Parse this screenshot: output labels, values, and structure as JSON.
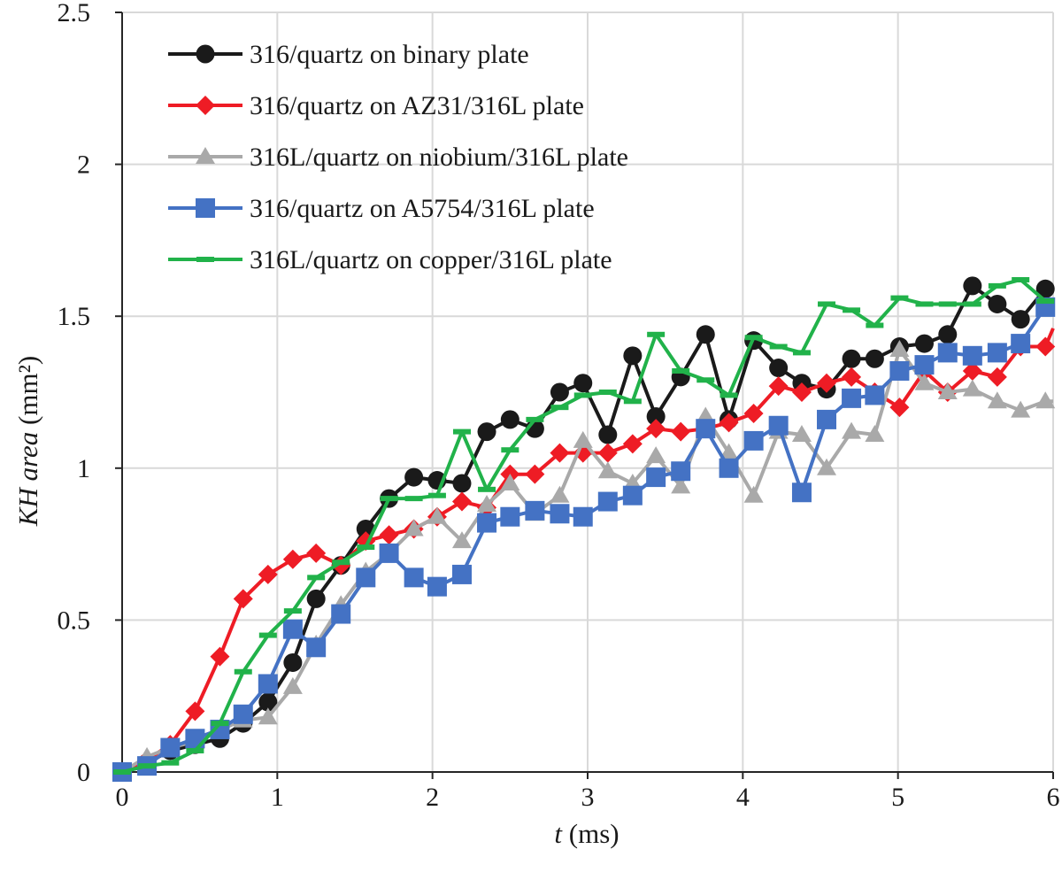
{
  "chart_data": {
    "type": "line",
    "title": "",
    "xlabel": {
      "var": "t",
      "unit": " (ms)"
    },
    "ylabel": {
      "var": "KH area",
      "unit": " (mm²)"
    },
    "xlim": [
      0,
      6
    ],
    "ylim": [
      0,
      2.5
    ],
    "x_ticks": [
      "0",
      "1",
      "2",
      "3",
      "4",
      "5",
      "6"
    ],
    "y_ticks": [
      "0",
      "0.5",
      "1",
      "1.5",
      "2",
      "2.5"
    ],
    "grid": true,
    "legend_position": "top-left",
    "series": [
      {
        "name": "316/quartz on binary plate",
        "color": "#1a1a1a",
        "marker": "circle",
        "x": [
          0,
          0.16,
          0.31,
          0.47,
          0.63,
          0.78,
          0.94,
          1.1,
          1.25,
          1.41,
          1.57,
          1.72,
          1.88,
          2.03,
          2.19,
          2.35,
          2.5,
          2.66,
          2.82,
          2.97,
          3.13,
          3.29,
          3.44,
          3.6,
          3.76,
          3.91,
          4.07,
          4.23,
          4.38,
          4.54,
          4.7,
          4.85,
          5.01,
          5.17,
          5.32,
          5.48,
          5.64,
          5.79,
          5.95,
          6.0
        ],
        "y": [
          0,
          0.03,
          0.07,
          0.09,
          0.11,
          0.16,
          0.23,
          0.36,
          0.57,
          0.68,
          0.8,
          0.9,
          0.97,
          0.96,
          0.95,
          1.12,
          1.16,
          1.13,
          1.25,
          1.28,
          1.11,
          1.37,
          1.17,
          1.3,
          1.44,
          1.16,
          1.42,
          1.33,
          1.28,
          1.26,
          1.36,
          1.36,
          1.4,
          1.41,
          1.44,
          1.6,
          1.54,
          1.49,
          1.59,
          1.59
        ]
      },
      {
        "name": "316/quartz on AZ31/316L plate",
        "color": "#ee1c25",
        "marker": "diamond",
        "x": [
          0,
          0.16,
          0.31,
          0.47,
          0.63,
          0.78,
          0.94,
          1.1,
          1.25,
          1.41,
          1.57,
          1.72,
          1.88,
          2.03,
          2.19,
          2.35,
          2.5,
          2.66,
          2.82,
          2.97,
          3.13,
          3.29,
          3.44,
          3.6,
          3.76,
          3.91,
          4.07,
          4.23,
          4.38,
          4.54,
          4.7,
          4.85,
          5.01,
          5.17,
          5.32,
          5.48,
          5.64,
          5.79,
          5.95,
          6.0
        ],
        "y": [
          0,
          0.04,
          0.09,
          0.2,
          0.38,
          0.57,
          0.65,
          0.7,
          0.72,
          0.68,
          0.76,
          0.78,
          0.8,
          0.84,
          0.89,
          0.87,
          0.98,
          0.98,
          1.05,
          1.05,
          1.05,
          1.08,
          1.13,
          1.12,
          1.13,
          1.15,
          1.18,
          1.27,
          1.25,
          1.28,
          1.3,
          1.25,
          1.2,
          1.32,
          1.25,
          1.32,
          1.3,
          1.4,
          1.4,
          1.46
        ]
      },
      {
        "name": "316L/quartz on niobium/316L plate",
        "color": "#a9a9a9",
        "marker": "triangle",
        "x": [
          0,
          0.16,
          0.31,
          0.47,
          0.63,
          0.78,
          0.94,
          1.1,
          1.25,
          1.41,
          1.57,
          1.72,
          1.88,
          2.03,
          2.19,
          2.35,
          2.5,
          2.66,
          2.82,
          2.97,
          3.13,
          3.29,
          3.44,
          3.6,
          3.76,
          3.91,
          4.07,
          4.23,
          4.38,
          4.54,
          4.7,
          4.85,
          5.01,
          5.17,
          5.32,
          5.48,
          5.64,
          5.79,
          5.95,
          6.0
        ],
        "y": [
          0,
          0.05,
          0.08,
          0.1,
          0.14,
          0.17,
          0.18,
          0.28,
          0.42,
          0.55,
          0.66,
          0.72,
          0.8,
          0.84,
          0.76,
          0.88,
          0.95,
          0.85,
          0.91,
          1.09,
          0.99,
          0.95,
          1.04,
          0.94,
          1.17,
          1.05,
          0.91,
          1.12,
          1.11,
          1.0,
          1.12,
          1.11,
          1.39,
          1.28,
          1.25,
          1.26,
          1.22,
          1.19,
          1.22,
          1.22
        ]
      },
      {
        "name": "316/quartz on A5754/316L plate",
        "color": "#4472c4",
        "marker": "square",
        "x": [
          0,
          0.16,
          0.31,
          0.47,
          0.63,
          0.78,
          0.94,
          1.1,
          1.25,
          1.41,
          1.57,
          1.72,
          1.88,
          2.03,
          2.19,
          2.35,
          2.5,
          2.66,
          2.82,
          2.97,
          3.13,
          3.29,
          3.44,
          3.6,
          3.76,
          3.91,
          4.07,
          4.23,
          4.38,
          4.54,
          4.7,
          4.85,
          5.01,
          5.17,
          5.32,
          5.48,
          5.64,
          5.79,
          5.95,
          6.0
        ],
        "y": [
          0,
          0.02,
          0.08,
          0.11,
          0.14,
          0.19,
          0.29,
          0.47,
          0.41,
          0.52,
          0.64,
          0.72,
          0.64,
          0.61,
          0.65,
          0.82,
          0.84,
          0.86,
          0.85,
          0.84,
          0.89,
          0.91,
          0.97,
          0.99,
          1.13,
          1.0,
          1.09,
          1.14,
          0.92,
          1.16,
          1.23,
          1.24,
          1.32,
          1.34,
          1.38,
          1.37,
          1.38,
          1.41,
          1.53,
          1.53
        ]
      },
      {
        "name": "316L/quartz on copper/316L plate",
        "color": "#21b24a",
        "marker": "dash",
        "x": [
          0,
          0.16,
          0.31,
          0.47,
          0.63,
          0.78,
          0.94,
          1.1,
          1.25,
          1.41,
          1.57,
          1.72,
          1.88,
          2.03,
          2.19,
          2.35,
          2.5,
          2.66,
          2.82,
          2.97,
          3.13,
          3.29,
          3.44,
          3.6,
          3.76,
          3.91,
          4.07,
          4.23,
          4.38,
          4.54,
          4.7,
          4.85,
          5.01,
          5.17,
          5.32,
          5.48,
          5.64,
          5.79,
          5.95,
          6.0
        ],
        "y": [
          0,
          0.02,
          0.03,
          0.07,
          0.16,
          0.33,
          0.45,
          0.53,
          0.64,
          0.69,
          0.74,
          0.9,
          0.9,
          0.91,
          1.12,
          0.93,
          1.06,
          1.16,
          1.2,
          1.24,
          1.25,
          1.22,
          1.44,
          1.32,
          1.29,
          1.24,
          1.43,
          1.4,
          1.38,
          1.54,
          1.52,
          1.47,
          1.56,
          1.54,
          1.54,
          1.54,
          1.6,
          1.62,
          1.55,
          1.55
        ]
      }
    ]
  }
}
